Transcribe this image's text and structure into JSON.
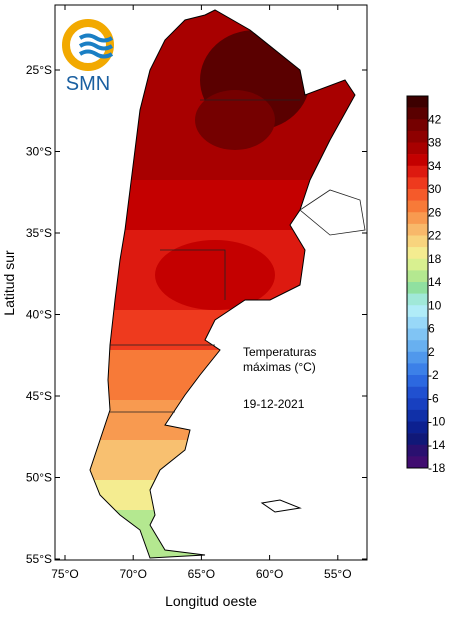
{
  "logo": {
    "text": "SMN"
  },
  "annotation": {
    "lines": [
      "Temperaturas",
      "máximas (°C)"
    ],
    "date": "19-12-2021"
  },
  "axes": {
    "x_label": "Longitud oeste",
    "y_label": "Latitud sur",
    "x_ticks": [
      "75°O",
      "70°O",
      "65°O",
      "60°O",
      "55°O"
    ],
    "y_ticks": [
      "25°S",
      "30°S",
      "35°S",
      "40°S",
      "45°S",
      "50°S",
      "55°S"
    ]
  },
  "colorbar": {
    "colors": [
      "#3d0000",
      "#5a0000",
      "#750000",
      "#8e0000",
      "#a80000",
      "#c40000",
      "#dd1a10",
      "#ee3a1e",
      "#f55a2a",
      "#f77a38",
      "#f89a50",
      "#f8b86a",
      "#f8d47e",
      "#f4ec90",
      "#d8f090",
      "#b4e890",
      "#90e0a0",
      "#a0e8d8",
      "#b0ecf8",
      "#98d8f8",
      "#80c4f4",
      "#68b0f0",
      "#5098ec",
      "#3c80e8",
      "#2c68e0",
      "#2050d0",
      "#1840c0",
      "#1030a8",
      "#0c2090",
      "#101878",
      "#2a1070",
      "#400c70"
    ],
    "labels": [
      "42",
      "38",
      "34",
      "30",
      "26",
      "22",
      "18",
      "14",
      "10",
      "6",
      "2",
      "-2",
      "-6",
      "-10",
      "-14",
      "-18"
    ]
  }
}
